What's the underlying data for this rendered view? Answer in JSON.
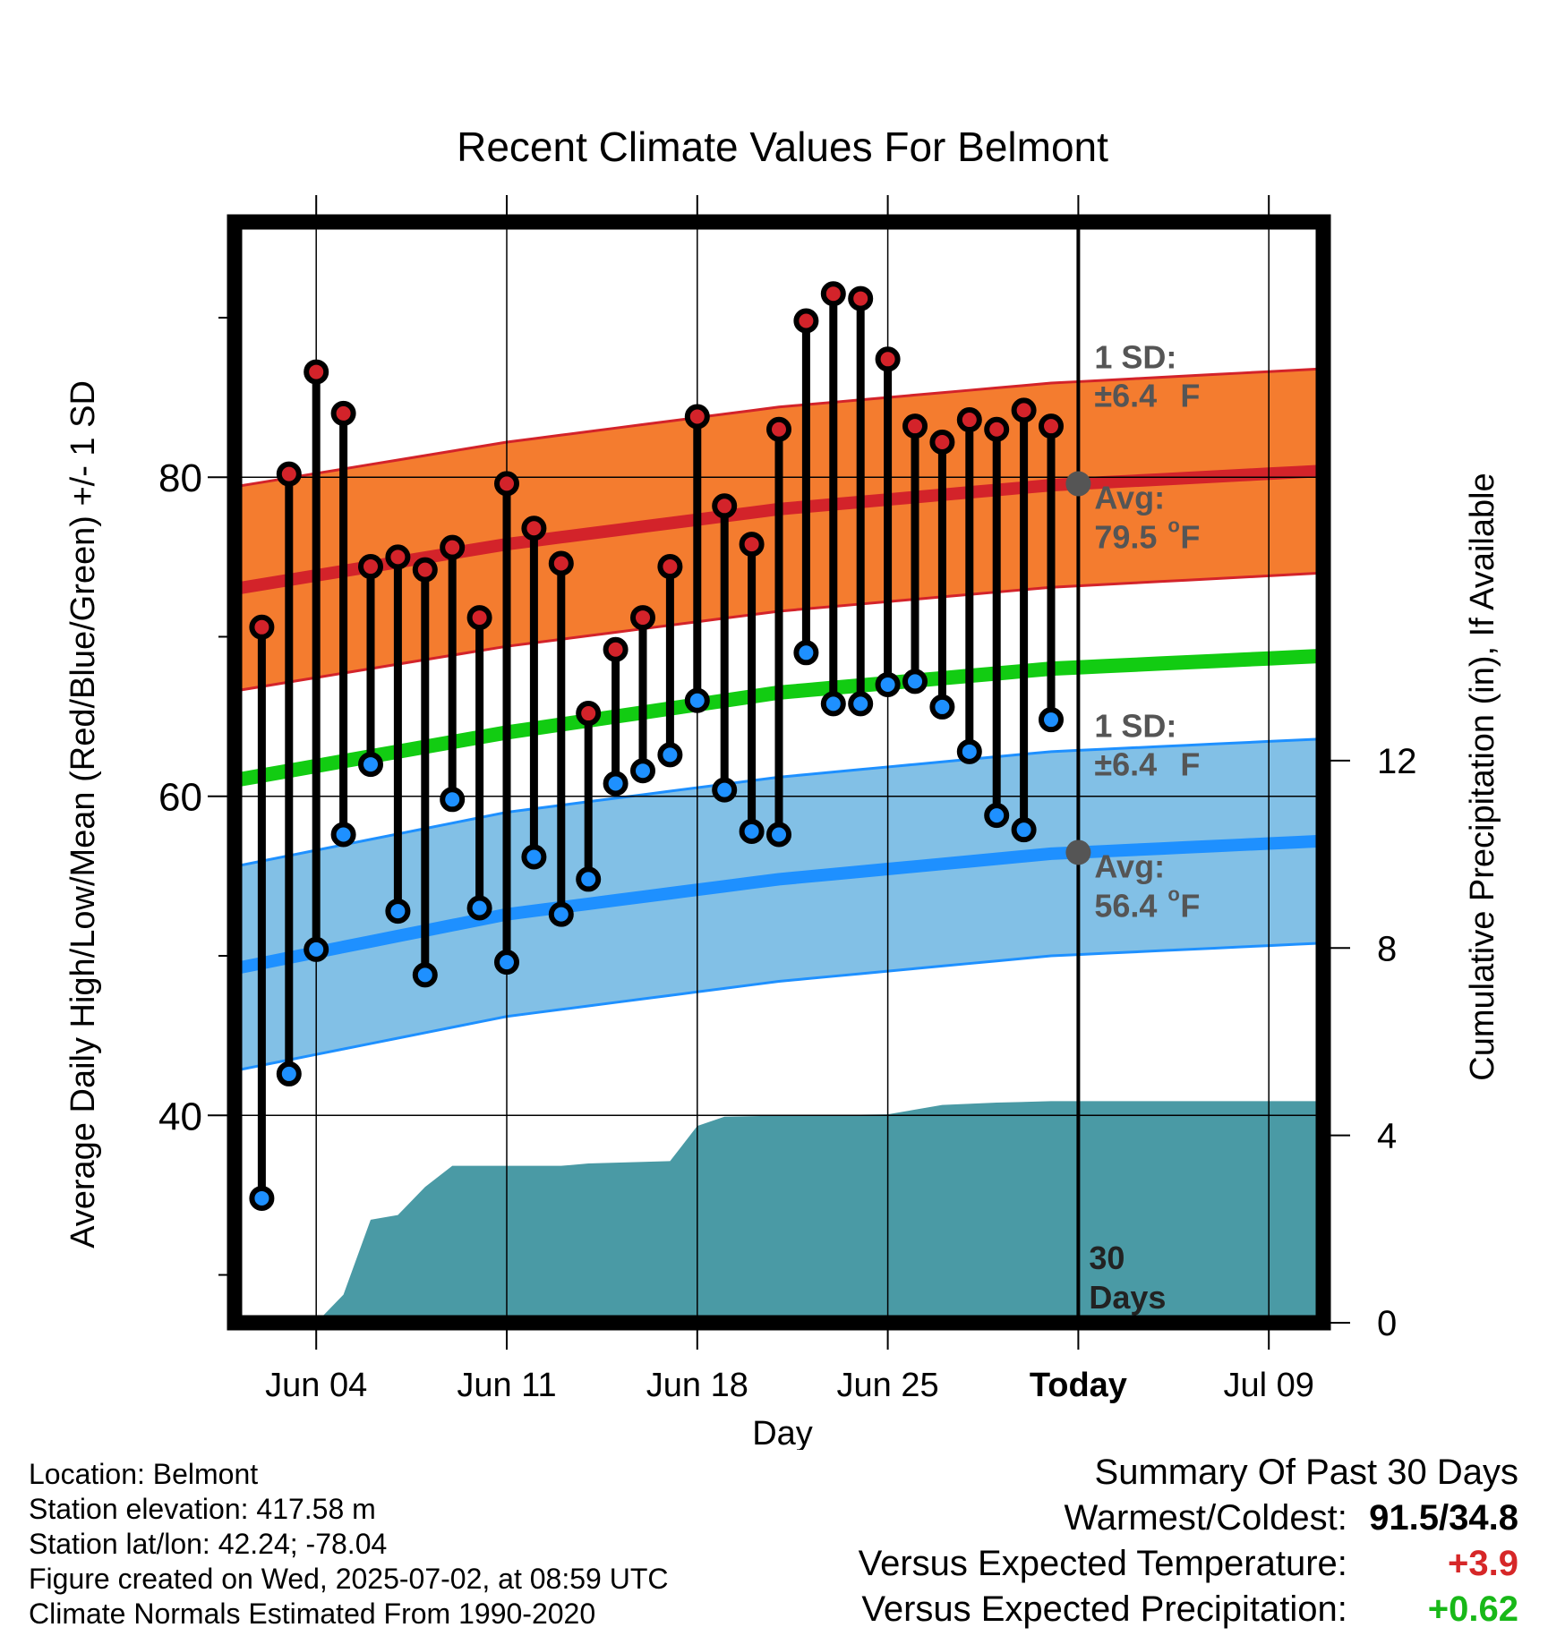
{
  "chart_data": {
    "type": "line",
    "title": "Recent Climate Values For Belmont",
    "xlabel": "Day",
    "ylabel_left": "Average Daily High/Low/Mean (Red/Blue/Green) +/- 1 SD",
    "ylabel_right": "Cumulative Precipitation (in), If Available",
    "x_tick_labels": [
      "Jun 04",
      "Jun 11",
      "Jun 18",
      "Jun 25",
      "Today",
      "Jul 09"
    ],
    "x_range": [
      "2025-06-01",
      "2025-07-11"
    ],
    "y_left": {
      "range": [
        27,
        96
      ],
      "ticks": [
        40,
        60,
        80
      ],
      "minor_ticks": [
        30,
        50,
        70,
        90
      ]
    },
    "y_right": {
      "range": [
        0,
        23.5
      ],
      "ticks": [
        0,
        4,
        8,
        12
      ]
    },
    "today": "2025-07-02",
    "today_label": "30 Days",
    "dates": [
      "2025-06-02",
      "2025-06-03",
      "2025-06-04",
      "2025-06-05",
      "2025-06-06",
      "2025-06-07",
      "2025-06-08",
      "2025-06-09",
      "2025-06-10",
      "2025-06-11",
      "2025-06-12",
      "2025-06-13",
      "2025-06-14",
      "2025-06-15",
      "2025-06-16",
      "2025-06-17",
      "2025-06-18",
      "2025-06-19",
      "2025-06-20",
      "2025-06-21",
      "2025-06-22",
      "2025-06-23",
      "2025-06-24",
      "2025-06-25",
      "2025-06-26",
      "2025-06-27",
      "2025-06-28",
      "2025-06-29",
      "2025-06-30",
      "2025-07-01"
    ],
    "highs": [
      70.6,
      80.2,
      86.6,
      84.0,
      74.4,
      75.0,
      74.2,
      75.6,
      71.2,
      79.6,
      76.8,
      74.6,
      65.2,
      69.2,
      71.2,
      74.4,
      83.8,
      78.2,
      75.8,
      83.0,
      89.8,
      91.5,
      91.2,
      87.4,
      83.2,
      82.2,
      83.6,
      83.0,
      84.2,
      83.2
    ],
    "lows": [
      34.8,
      42.6,
      50.4,
      57.6,
      62.0,
      52.8,
      48.8,
      59.8,
      53.0,
      49.6,
      56.2,
      52.6,
      54.8,
      60.8,
      61.6,
      62.6,
      66.0,
      60.4,
      57.8,
      57.6,
      69.0,
      65.8,
      65.8,
      67.0,
      67.2,
      65.6,
      62.8,
      58.8,
      57.9,
      64.8
    ],
    "normal_high": {
      "dates": [
        "2025-06-01",
        "2025-06-11",
        "2025-06-21",
        "2025-07-01",
        "2025-07-11"
      ],
      "values": [
        73.0,
        75.8,
        78.0,
        79.5,
        80.4
      ]
    },
    "normal_low": {
      "dates": [
        "2025-06-01",
        "2025-06-11",
        "2025-06-21",
        "2025-07-01",
        "2025-07-11"
      ],
      "values": [
        49.2,
        52.6,
        54.8,
        56.4,
        57.2
      ]
    },
    "normal_mean": {
      "dates": [
        "2025-06-01",
        "2025-06-11",
        "2025-06-21",
        "2025-07-01",
        "2025-07-11"
      ],
      "values": [
        61.0,
        64.0,
        66.5,
        68.0,
        68.8
      ]
    },
    "sd_degF": 6.4,
    "precip_dates": [
      "2025-06-03",
      "2025-06-04",
      "2025-06-05",
      "2025-06-06",
      "2025-06-07",
      "2025-06-08",
      "2025-06-09",
      "2025-06-10",
      "2025-06-13",
      "2025-06-14",
      "2025-06-17",
      "2025-06-18",
      "2025-06-19",
      "2025-06-21",
      "2025-06-25",
      "2025-06-27",
      "2025-06-29",
      "2025-07-01",
      "2025-07-11"
    ],
    "precip_cumulative": [
      0,
      0,
      0.6,
      2.2,
      2.3,
      2.9,
      3.35,
      3.35,
      3.35,
      3.4,
      3.45,
      4.2,
      4.4,
      4.42,
      4.45,
      4.65,
      4.7,
      4.73,
      4.73
    ],
    "high_annotation": {
      "sd_title": "1 SD:",
      "sd_value": "±6.4",
      "avg_title": "Avg:",
      "avg_value": "79.5",
      "unit": "F",
      "degree": "o"
    },
    "low_annotation": {
      "sd_title": "1 SD:",
      "sd_value": "±6.4",
      "avg_title": "Avg:",
      "avg_value": "56.4",
      "unit": "F",
      "degree": "o"
    },
    "colors": {
      "high_band": "#f47c2f",
      "high_line": "#d3232a",
      "low_band": "#82c0e6",
      "low_line": "#1e90ff",
      "mean_line": "#12cc12",
      "precip": "#4a9aa5",
      "high_dot": "#d3232a",
      "low_dot": "#1e90ff",
      "annotation": "#555555"
    }
  },
  "footer": {
    "location": "Location: Belmont",
    "elevation": "Station elevation: 417.58 m",
    "latlon": "Station lat/lon: 42.24; -78.04",
    "created": "Figure created on Wed, 2025-07-02, at 08:59 UTC",
    "normals": "Climate Normals Estimated From 1990-2020"
  },
  "summary": {
    "title": "Summary Of Past 30 Days",
    "warmest_coldest_label": "Warmest/Coldest:",
    "warmest_coldest_value": "91.5/34.8",
    "temp_label": "Versus Expected Temperature:",
    "temp_value": "+3.9",
    "precip_label": "Versus Expected Precipitation:",
    "precip_value": "+0.62"
  }
}
